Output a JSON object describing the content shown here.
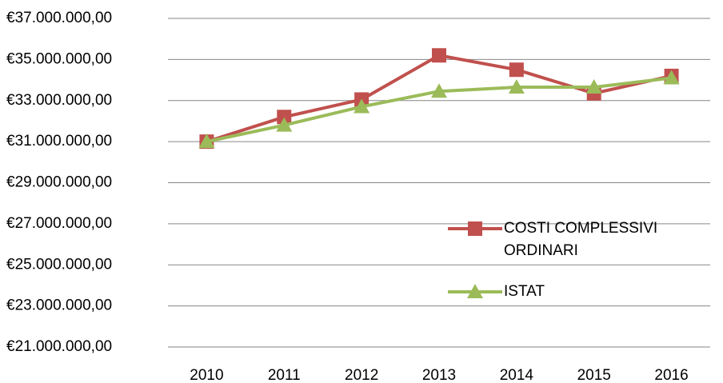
{
  "chart_data": {
    "type": "line",
    "categories": [
      "2010",
      "2011",
      "2012",
      "2013",
      "2014",
      "2015",
      "2016"
    ],
    "series": [
      {
        "name": "COSTI COMPLESSIVI ORDINARI",
        "color": "#c0504d",
        "marker": "square",
        "values": [
          31000000,
          32200000,
          33050000,
          35200000,
          34500000,
          33350000,
          34200000
        ]
      },
      {
        "name": "ISTAT",
        "color": "#9bbb59",
        "marker": "triangle",
        "values": [
          31000000,
          31800000,
          32700000,
          33450000,
          33650000,
          33650000,
          34100000
        ]
      }
    ],
    "ylim": [
      21000000,
      37000000
    ],
    "yticks": [
      {
        "value": 21000000,
        "label": "€21.000.000,00"
      },
      {
        "value": 23000000,
        "label": "€23.000.000,00"
      },
      {
        "value": 25000000,
        "label": "€25.000.000,00"
      },
      {
        "value": 27000000,
        "label": "€27.000.000,00"
      },
      {
        "value": 29000000,
        "label": "€29.000.000,00"
      },
      {
        "value": 31000000,
        "label": "€31.000.000,00"
      },
      {
        "value": 33000000,
        "label": "€33.000.000,00"
      },
      {
        "value": 35000000,
        "label": "€35.000.000,00"
      },
      {
        "value": 37000000,
        "label": "€37.000.000,00"
      }
    ],
    "grid": true
  }
}
